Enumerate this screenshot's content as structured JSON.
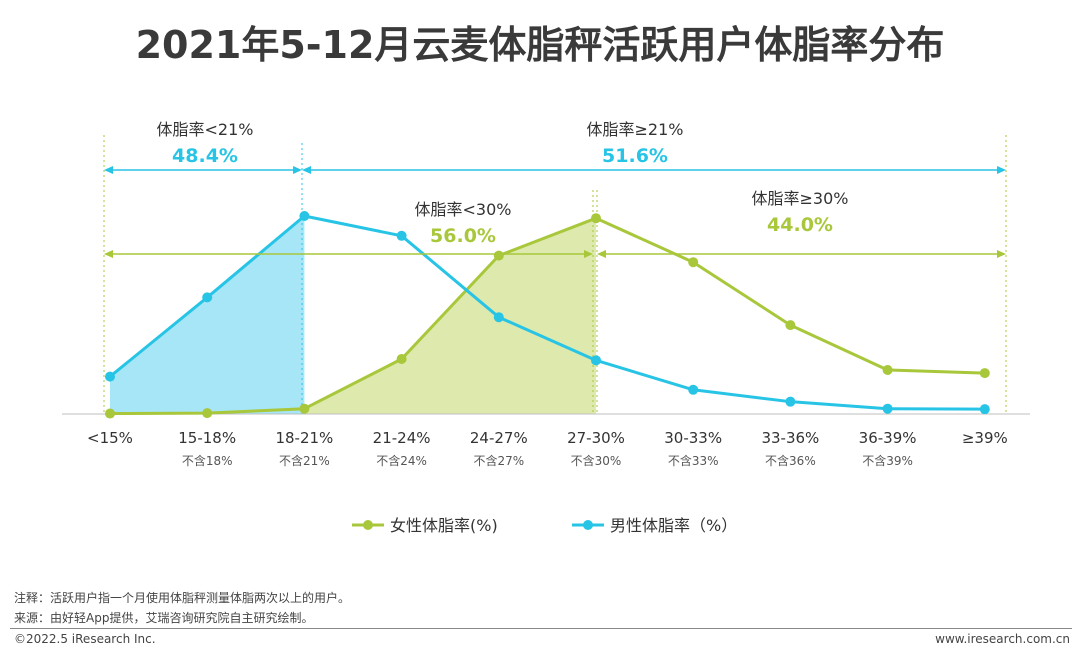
{
  "title": "2021年5-12月云麦体脂秤活跃用户体脂率分布",
  "chart_data": {
    "type": "line",
    "categories": [
      "<15%",
      "15-18%",
      "18-21%",
      "21-24%",
      "24-27%",
      "27-30%",
      "30-33%",
      "33-36%",
      "36-39%",
      "≥39%"
    ],
    "sublabels": [
      "",
      "不含18%",
      "不含21%",
      "不含24%",
      "不含27%",
      "不含30%",
      "不含33%",
      "不含36%",
      "不含39%",
      ""
    ],
    "series": [
      {
        "name": "女性体脂率(%)",
        "color": "#a8c73a",
        "fill": "#dde9ad",
        "values": [
          0.1,
          0.2,
          1.2,
          12.5,
          36.0,
          44.5,
          34.5,
          20.2,
          10.0,
          9.3
        ]
      },
      {
        "name": "男性体脂率（%）",
        "color": "#27c4e6",
        "fill": "#a6e6f7",
        "values": [
          8.5,
          26.5,
          45.0,
          40.5,
          22.0,
          12.2,
          5.5,
          2.8,
          1.2,
          1.1
        ]
      }
    ],
    "ylim": [
      0,
      50
    ],
    "legend": "bottom",
    "brackets": [
      {
        "label": "体脂率<21%",
        "value": "48.4%",
        "color": "#27c4e6"
      },
      {
        "label": "体脂率≥21%",
        "value": "51.6%",
        "color": "#27c4e6"
      },
      {
        "label": "体脂率<30%",
        "value": "56.0%",
        "color": "#a8c73a"
      },
      {
        "label": "体脂率≥30%",
        "value": "44.0%",
        "color": "#a8c73a"
      }
    ]
  },
  "notes": {
    "note1": "注释：活跃用户指一个月使用体脂秤测量体脂两次以上的用户。",
    "note2": "来源：由好轻App提供，艾瑞咨询研究院自主研究绘制。"
  },
  "footer": {
    "copyright": "©2022.5 iResearch Inc.",
    "site": "www.iresearch.com.cn"
  }
}
